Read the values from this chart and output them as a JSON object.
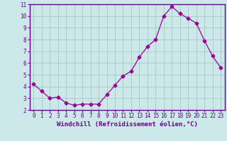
{
  "x": [
    0,
    1,
    2,
    3,
    4,
    5,
    6,
    7,
    8,
    9,
    10,
    11,
    12,
    13,
    14,
    15,
    16,
    17,
    18,
    19,
    20,
    21,
    22,
    23
  ],
  "y": [
    4.2,
    3.6,
    3.0,
    3.1,
    2.6,
    2.4,
    2.5,
    2.5,
    2.5,
    3.3,
    4.1,
    4.9,
    5.3,
    6.5,
    7.4,
    8.0,
    10.0,
    10.8,
    10.2,
    9.8,
    9.4,
    7.9,
    6.6,
    5.6
  ],
  "line_color": "#990099",
  "marker": "D",
  "marker_size": 2.5,
  "bg_color": "#cce8e8",
  "grid_color": "#aacccc",
  "xlabel": "Windchill (Refroidissement éolien,°C)",
  "xlabel_color": "#660099",
  "ylim": [
    2,
    11
  ],
  "yticks": [
    2,
    3,
    4,
    5,
    6,
    7,
    8,
    9,
    10,
    11
  ],
  "xticks": [
    0,
    1,
    2,
    3,
    4,
    5,
    6,
    7,
    8,
    9,
    10,
    11,
    12,
    13,
    14,
    15,
    16,
    17,
    18,
    19,
    20,
    21,
    22,
    23
  ],
  "spine_color": "#660099",
  "tick_color": "#660099",
  "tick_fontsize": 5.5,
  "ylabel_fontsize": 5.5,
  "xlabel_fontsize": 6.5
}
